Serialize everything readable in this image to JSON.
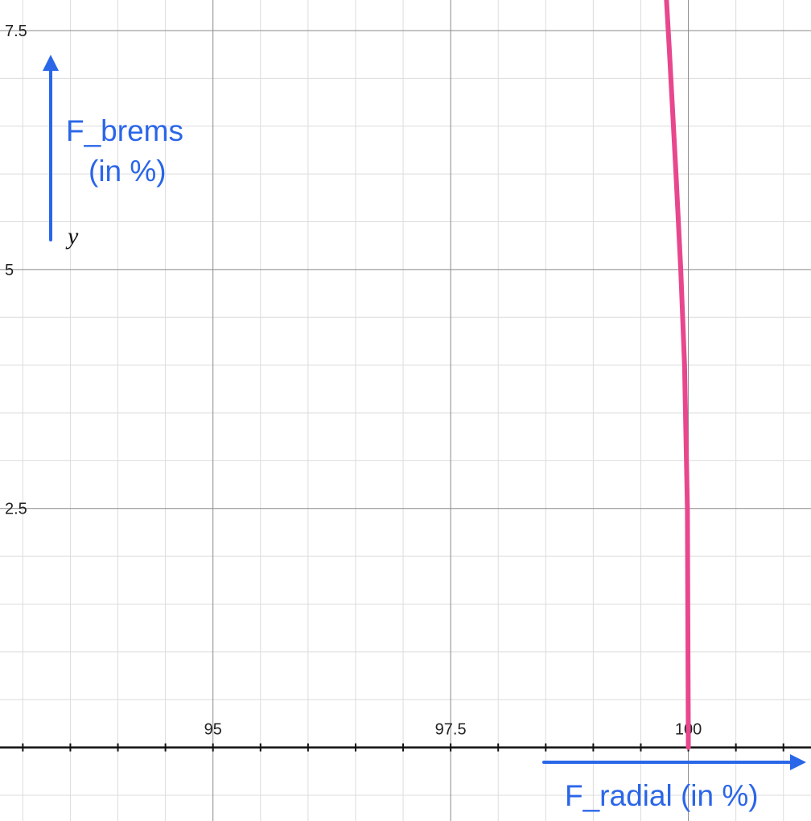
{
  "chart_data": {
    "type": "line",
    "title": "",
    "xlabel": "F_radial (in %)",
    "ylabel_lines": [
      "F_brems",
      "(in %)"
    ],
    "y_variable": "y",
    "xlim": [
      92.76,
      101.29
    ],
    "ylim": [
      -0.77,
      7.82
    ],
    "x_ticks": [
      95,
      97.5,
      100
    ],
    "x_tick_labels": [
      "95",
      "97.5",
      "100"
    ],
    "y_ticks": [
      2.5,
      5,
      7.5
    ],
    "y_tick_labels": [
      "2.5",
      "5",
      "7.5"
    ],
    "x_minor_step": 0.5,
    "y_minor_step": 0.5,
    "grid": true,
    "series": [
      {
        "color": "#e8478e",
        "x": [
          100.0,
          99.99,
          99.96,
          99.92,
          99.87,
          99.8,
          99.77
        ],
        "y": [
          0.0,
          2.5,
          4.0,
          5.0,
          6.0,
          7.3,
          7.82
        ]
      }
    ]
  }
}
